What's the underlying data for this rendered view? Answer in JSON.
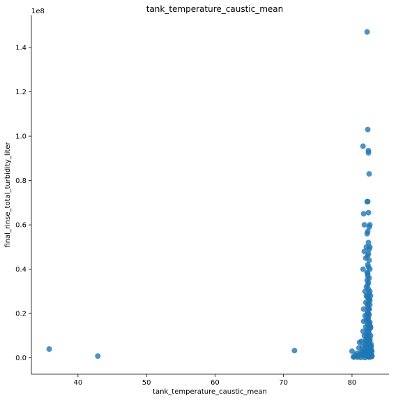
{
  "chart_data": {
    "type": "scatter",
    "title": "tank_temperature_caustic_mean",
    "xlabel": "tank_temperature_caustic_mean",
    "ylabel": "final_rinse_total_turbidity_liter",
    "y_offset_text": "1e8",
    "xlim": [
      33.2,
      85.4
    ],
    "ylim": [
      -7350000,
      154500000
    ],
    "xticks": [
      40,
      50,
      60,
      70,
      80
    ],
    "xtick_labels": [
      "40",
      "50",
      "60",
      "70",
      "80"
    ],
    "yticks": [
      0,
      20000000,
      40000000,
      60000000,
      80000000,
      100000000,
      120000000,
      140000000
    ],
    "ytick_labels": [
      "0.0",
      "0.2",
      "0.4",
      "0.6",
      "0.8",
      "1.0",
      "1.2",
      "1.4"
    ],
    "grid": false,
    "legend": "none",
    "colors": {
      "marker": "#1f77b4",
      "marker_opacity": 0.8
    },
    "series": [
      {
        "x": [
          35.8,
          42.9,
          71.6,
          80.0,
          80.2,
          80.5,
          80.7,
          80.9,
          81.0,
          81.1,
          81.2,
          81.3,
          81.4,
          81.5,
          81.5,
          81.6,
          81.6,
          81.7,
          81.7,
          81.8,
          81.8,
          81.9,
          81.9,
          81.9,
          82.0,
          82.0,
          82.0,
          82.0,
          82.1,
          82.1,
          82.1,
          82.1,
          82.1,
          82.2,
          82.2,
          82.2,
          82.2,
          82.3,
          82.3,
          82.3,
          82.3,
          82.3,
          82.4,
          82.4,
          82.4,
          82.4,
          82.5,
          82.5,
          82.5,
          82.5,
          82.6,
          82.6,
          82.6,
          82.6,
          82.7,
          82.7,
          82.7,
          82.7,
          82.8,
          82.8,
          82.8,
          82.9,
          82.9,
          81.6,
          81.8,
          81.7,
          82.2,
          82.3,
          82.4,
          82.4,
          82.5,
          82.3,
          82.2,
          82.4,
          82.6,
          82.5,
          82.3,
          82.2,
          82.4,
          82.6,
          82.5,
          82.4,
          82.3,
          82.5,
          82.3,
          82.4,
          82.6,
          82.2,
          82.3,
          82.5,
          82.4,
          82.3,
          82.1,
          82.4,
          82.6,
          82.5,
          82.7,
          82.2,
          82.5,
          82.4,
          82.6,
          82.3,
          82.5,
          82.3,
          82.4,
          82.5,
          82.2,
          82.3,
          82.4,
          82.5,
          82.6,
          82.7,
          82.3,
          82.4,
          82.5,
          82.1,
          82.2,
          82.4,
          82.5,
          82.6,
          82.0,
          82.2,
          82.4,
          82.6,
          82.8,
          81.9,
          82.1,
          82.3,
          82.5,
          82.7,
          81.8,
          82.0,
          82.2,
          82.4,
          82.6,
          82.8,
          81.5,
          81.8,
          82.1,
          82.4,
          82.7,
          80.3,
          80.8,
          81.3,
          81.9,
          82.5,
          82.9
        ],
        "y": [
          4000000,
          800000,
          3300000,
          3000000,
          500000,
          1200000,
          2000000,
          800000,
          4500000,
          7000000,
          1500000,
          2500000,
          7500000,
          3000000,
          5000000,
          12000000,
          40000000,
          16500000,
          22000000,
          10000000,
          48000000,
          6000000,
          19000000,
          30000000,
          8000000,
          14000000,
          25000000,
          45000000,
          3000000,
          9000000,
          17000000,
          28000000,
          50000000,
          5000000,
          12000000,
          20000000,
          35000000,
          2000000,
          7000000,
          15000000,
          24000000,
          38000000,
          4000000,
          10000000,
          18000000,
          27000000,
          1000000,
          6000000,
          13000000,
          22000000,
          3500000,
          8500000,
          16000000,
          26000000,
          2000000,
          5000000,
          10000000,
          14000000,
          1500000,
          3500000,
          6000000,
          1000000,
          3000000,
          95500000,
          60000000,
          65000000,
          147000000,
          103000000,
          93500000,
          92500000,
          83000000,
          70500000,
          70500000,
          65500000,
          60000000,
          59000000,
          57000000,
          56000000,
          52000000,
          50000000,
          49000000,
          47000000,
          46000000,
          44000000,
          42000000,
          41000000,
          40000000,
          38500000,
          37000000,
          36000000,
          34000000,
          33000000,
          32000000,
          31000000,
          30000000,
          29000000,
          28000000,
          27500000,
          26500000,
          25000000,
          24000000,
          23000000,
          22000000,
          21000000,
          20000000,
          19500000,
          18500000,
          17500000,
          16500000,
          15500000,
          14500000,
          13500000,
          13000000,
          12000000,
          11000000,
          10500000,
          9500000,
          9000000,
          8000000,
          7500000,
          7000000,
          6500000,
          6000000,
          5500000,
          5000000,
          4500000,
          4200000,
          3800000,
          3500000,
          3200000,
          2900000,
          2600000,
          2300000,
          2000000,
          1800000,
          1500000,
          1300000,
          1100000,
          900000,
          700000,
          500000,
          400000,
          300000,
          200000,
          100000,
          300000,
          600000
        ]
      }
    ]
  }
}
